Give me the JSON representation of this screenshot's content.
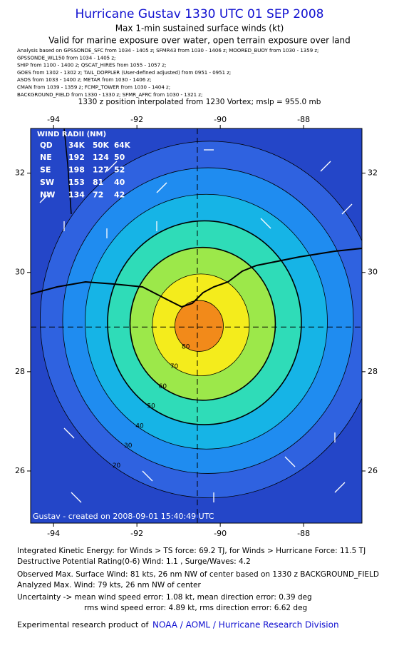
{
  "header": {
    "title": "Hurricane Gustav 1330 UTC 01 SEP 2008",
    "subtitle": "Max 1-min sustained surface winds (kt)",
    "validity": "Valid for marine exposure over water, open terrain exposure over land"
  },
  "analysis": [
    "Analysis based on  GPSSONDE_SFC from 1034 - 1405 z;  SFMR43 from 1030 - 1406 z;  MOORED_BUOY from 1030 - 1359 z;",
    "GPSSONDE_WL150 from 1034 - 1405 z;",
    "SHIP from 1100 - 1400 z;  QSCAT_HIRES from 1055 - 1057 z;",
    "GOES from 1302 - 1302 z;  TAIL_DOPPLER (User-defined adjusted) from 0951 - 0951 z;",
    "ASOS from 1033 - 1400 z;  METAR from 1030 - 1406 z;",
    "CMAN from 1039 - 1359 z;  FCMP_TOWER from 1030 - 1404 z;",
    "BACKGROUND_FIELD from 1330 - 1330 z;  SFMR_AFRC from 1030 - 1321 z;"
  ],
  "position_note": "1330 z position interpolated from 1230 Vortex; mslp = 955.0 mb",
  "map": {
    "xlim": [
      -94.55,
      -86.6
    ],
    "ylim": [
      24.95,
      32.9
    ],
    "xticks": [
      -94,
      -92,
      -90,
      -88
    ],
    "yticks": [
      26,
      28,
      30,
      32
    ],
    "center": {
      "lon": -90.55,
      "lat": 28.9
    },
    "contours": [
      {
        "level": 20,
        "color": "#2f62e0"
      },
      {
        "level": 30,
        "color": "#1f8cf0"
      },
      {
        "level": 40,
        "color": "#16b4e6"
      },
      {
        "level": 50,
        "color": "#2fdcb8"
      },
      {
        "level": 60,
        "color": "#9ce84a"
      },
      {
        "level": 70,
        "color": "#f4ec1c"
      },
      {
        "level": 80,
        "color": "#f28a1a"
      }
    ],
    "background_color": "#2446c8",
    "credit": "Gustav - created on 2008-09-01 15:40:49 UTC"
  },
  "wind_radii": {
    "title": "WIND RADII (NM)",
    "columns": [
      "QD",
      "34K",
      "50K",
      "64K"
    ],
    "rows": [
      [
        "NE",
        192,
        124,
        50
      ],
      [
        "SE",
        198,
        127,
        52
      ],
      [
        "SW",
        153,
        81,
        40
      ],
      [
        "NW",
        134,
        72,
        42
      ]
    ]
  },
  "footer": {
    "ike": "Integrated Kinetic Energy:  for Winds > TS force: 69.2 TJ,  for Winds > Hurricane Force: 11.5 TJ",
    "dpr": "Destructive Potential Rating(0-6)   Wind: 1.1 , Surge/Waves: 4.2",
    "observed": "Observed Max. Surface Wind: 81 kts, 26 nm NW of center based on 1330 z BACKGROUND_FIELD",
    "analyzed": "Analyzed Max. Wind: 79 kts, 26 nm NW of center",
    "uncertainty1": "Uncertainty -> mean wind speed error: 1.08 kt,   mean direction error: 0.39 deg",
    "uncertainty2": "rms wind speed error: 4.89 kt,   rms direction error: 6.62 deg",
    "product": "Experimental research product of",
    "link": "NOAA / AOML / Hurricane Research Division"
  }
}
